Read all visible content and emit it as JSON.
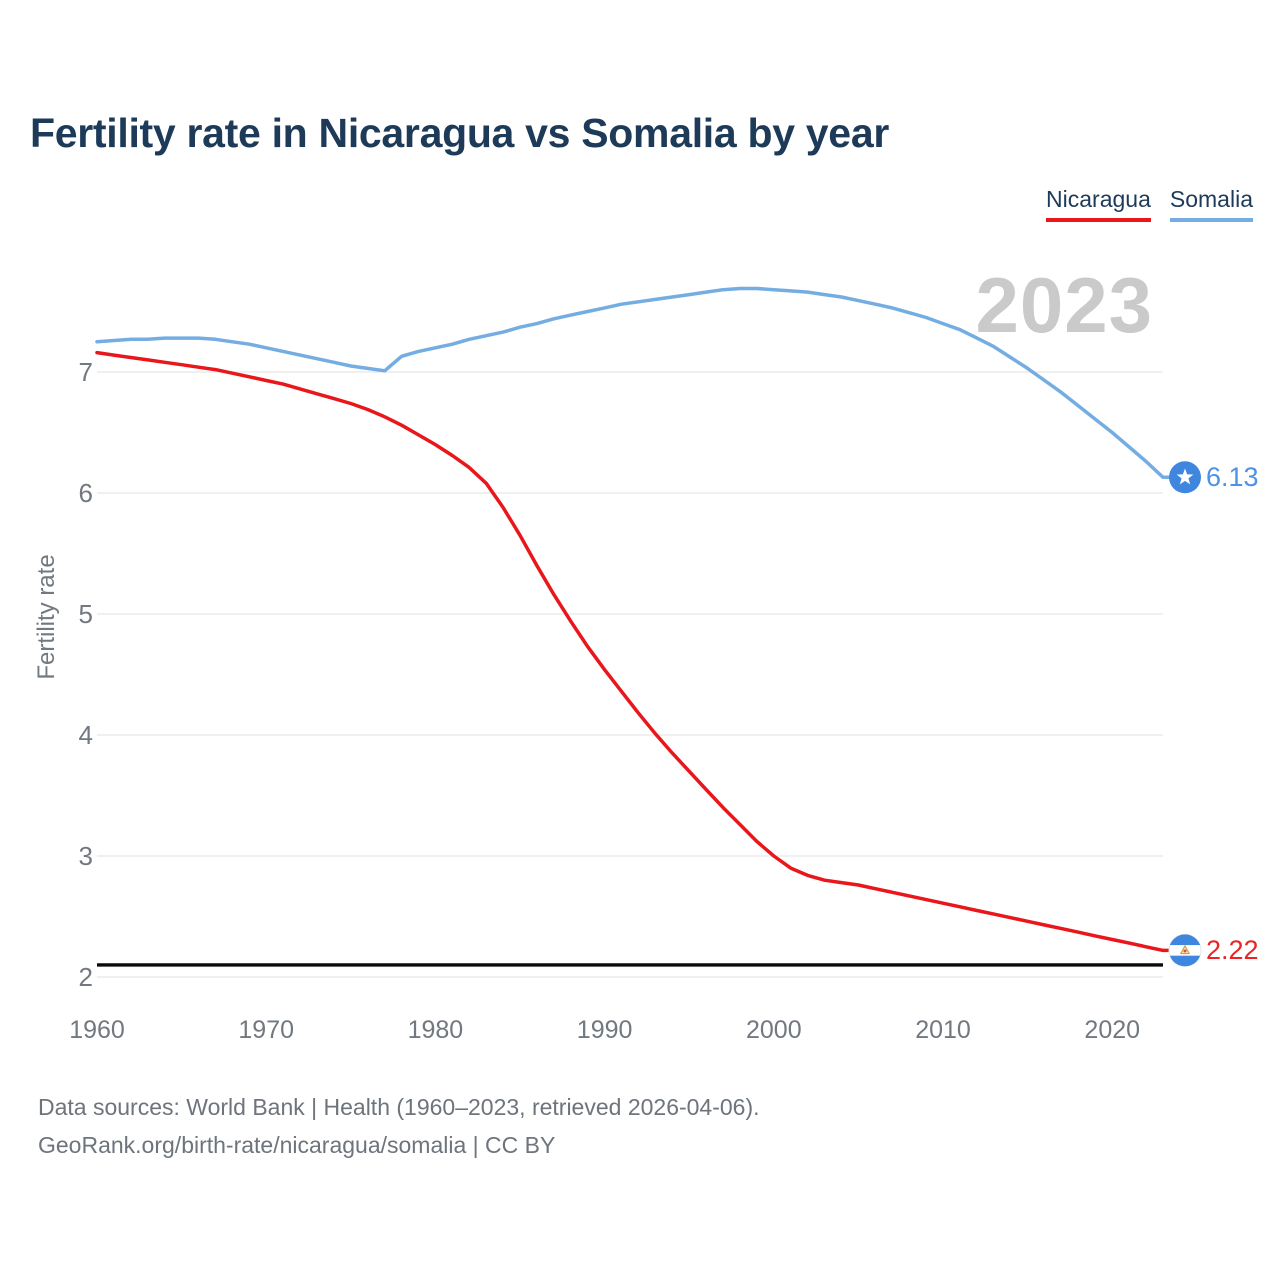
{
  "title": "Fertility rate in Nicaragua vs Somalia by year",
  "legend": {
    "nicaragua": {
      "label": "Nicaragua",
      "color": "#e9161b"
    },
    "somalia": {
      "label": "Somalia",
      "color": "#74ade2"
    }
  },
  "watermark": "2023",
  "y_axis": {
    "label": "Fertility rate",
    "ticks": [
      "7",
      "6",
      "5",
      "4",
      "3",
      "2"
    ]
  },
  "x_axis": {
    "ticks": [
      "1960",
      "1970",
      "1980",
      "1990",
      "2000",
      "2010",
      "2020"
    ]
  },
  "end_labels": {
    "somalia": "6.13",
    "nicaragua": "2.22"
  },
  "footer": {
    "line1": "Data sources: World Bank | Health (1960–2023, retrieved 2026-04-06).",
    "line2": "GeoRank.org/birth-rate/nicaragua/somalia | CC BY"
  },
  "colors": {
    "title_text": "#1e3a59",
    "axis_text": "#71787f",
    "grid": "#e8e8e8",
    "watermark": "#cacaca",
    "footer_text": "#6d747c",
    "reference_line": "#0b0b0b",
    "nicaragua_line": "#e9161b",
    "somalia_line": "#74ade2",
    "somalia_label": "#4b93e4",
    "nicaragua_label": "#ee2222",
    "flag_blue": "#3f87de"
  },
  "chart_data": {
    "type": "line",
    "title": "Fertility rate in Nicaragua vs Somalia by year",
    "ylabel": "Fertility rate",
    "xlabel": "",
    "ylim": [
      2,
      7.8
    ],
    "xlim": [
      1960,
      2023
    ],
    "grid": "horizontal",
    "legend_position": "top-right",
    "reference_line": {
      "value": 2.1,
      "color": "#0b0b0b"
    },
    "x": [
      1960,
      1961,
      1962,
      1963,
      1964,
      1965,
      1966,
      1967,
      1968,
      1969,
      1970,
      1971,
      1972,
      1973,
      1974,
      1975,
      1976,
      1977,
      1978,
      1979,
      1980,
      1981,
      1982,
      1983,
      1984,
      1985,
      1986,
      1987,
      1988,
      1989,
      1990,
      1991,
      1992,
      1993,
      1994,
      1995,
      1996,
      1997,
      1998,
      1999,
      2000,
      2001,
      2002,
      2003,
      2004,
      2005,
      2006,
      2007,
      2008,
      2009,
      2010,
      2011,
      2012,
      2013,
      2014,
      2015,
      2016,
      2017,
      2018,
      2019,
      2020,
      2021,
      2022,
      2023
    ],
    "series": [
      {
        "name": "Nicaragua",
        "color": "#e9161b",
        "end_label": "2.22",
        "values": [
          7.16,
          7.14,
          7.12,
          7.1,
          7.08,
          7.06,
          7.04,
          7.02,
          6.99,
          6.96,
          6.93,
          6.9,
          6.86,
          6.82,
          6.78,
          6.74,
          6.69,
          6.63,
          6.56,
          6.48,
          6.4,
          6.31,
          6.21,
          6.08,
          5.88,
          5.65,
          5.4,
          5.16,
          4.94,
          4.73,
          4.54,
          4.36,
          4.18,
          4.01,
          3.85,
          3.7,
          3.55,
          3.4,
          3.26,
          3.12,
          3.0,
          2.9,
          2.84,
          2.8,
          2.78,
          2.76,
          2.73,
          2.7,
          2.67,
          2.64,
          2.61,
          2.58,
          2.55,
          2.52,
          2.49,
          2.46,
          2.43,
          2.4,
          2.37,
          2.34,
          2.31,
          2.28,
          2.25,
          2.22
        ]
      },
      {
        "name": "Somalia",
        "color": "#74ade2",
        "end_label": "6.13",
        "values": [
          7.25,
          7.26,
          7.27,
          7.27,
          7.28,
          7.28,
          7.28,
          7.27,
          7.25,
          7.23,
          7.2,
          7.17,
          7.14,
          7.11,
          7.08,
          7.05,
          7.03,
          7.01,
          7.13,
          7.17,
          7.2,
          7.23,
          7.27,
          7.3,
          7.33,
          7.37,
          7.4,
          7.44,
          7.47,
          7.5,
          7.53,
          7.56,
          7.58,
          7.6,
          7.62,
          7.64,
          7.66,
          7.68,
          7.69,
          7.69,
          7.68,
          7.67,
          7.66,
          7.64,
          7.62,
          7.59,
          7.56,
          7.53,
          7.49,
          7.45,
          7.4,
          7.35,
          7.28,
          7.21,
          7.12,
          7.03,
          6.93,
          6.83,
          6.72,
          6.61,
          6.5,
          6.38,
          6.26,
          6.13
        ]
      }
    ]
  }
}
